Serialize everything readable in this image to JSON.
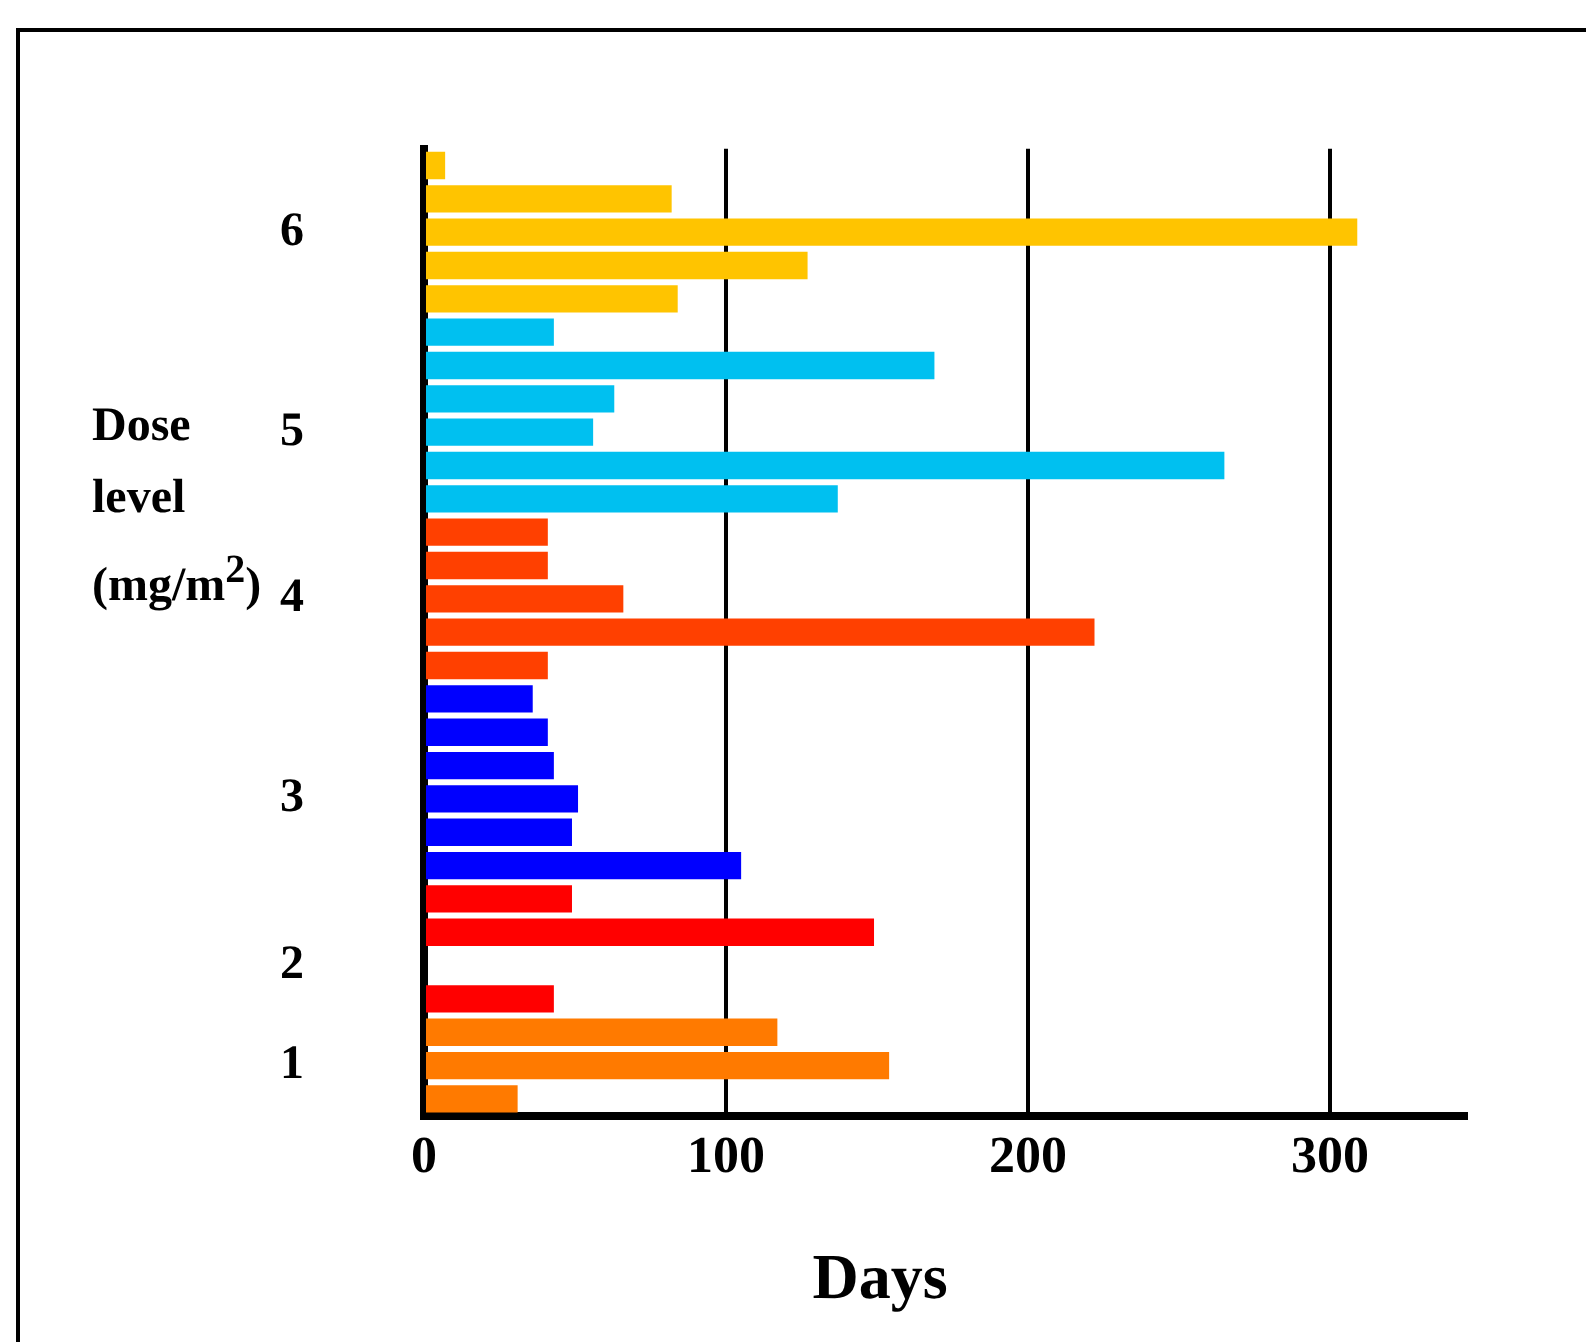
{
  "chart_data": {
    "type": "bar",
    "orientation": "horizontal",
    "xlabel": "Days",
    "ylabel": "Dose level (mg/m$^{2}$)",
    "categories": [
      null,
      null,
      "6",
      null,
      null,
      null,
      null,
      null,
      "5",
      null,
      null,
      null,
      null,
      "4",
      null,
      null,
      null,
      null,
      null,
      "3",
      null,
      null,
      null,
      null,
      "2",
      null,
      null,
      "1",
      null
    ],
    "values": [
      7,
      82,
      309,
      127,
      84,
      43,
      169,
      63,
      56,
      265,
      137,
      41,
      41,
      66,
      222,
      41,
      36,
      41,
      43,
      51,
      49,
      105,
      49,
      149,
      null,
      43,
      117,
      154,
      31
    ],
    "colors": [
      "#ffc400",
      "#ffc400",
      "#ffc400",
      "#ffc400",
      "#ffc400",
      "#00c0f0",
      "#00c0f0",
      "#00c0f0",
      "#00c0f0",
      "#00c0f0",
      "#00c0f0",
      "#ff4000",
      "#ff4000",
      "#ff4000",
      "#ff4000",
      "#ff4000",
      "#0000ff",
      "#0000ff",
      "#0000ff",
      "#0000ff",
      "#0000ff",
      "#0000ff",
      "#ff0000",
      "#ff0000",
      "#ff0000",
      "#ff0000",
      "#ff7a00",
      "#ff7a00",
      "#ff7a00"
    ],
    "xlim": [
      0,
      345
    ],
    "xticks": [
      0,
      100,
      200,
      300
    ],
    "grid": "x"
  }
}
